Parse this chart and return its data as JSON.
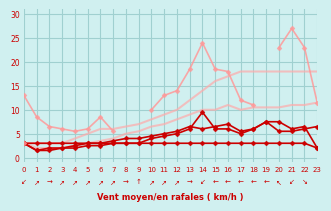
{
  "title": "",
  "xlabel": "Vent moyen/en rafales ( km/h )",
  "ylabel": "",
  "bg_color": "#d0f0f0",
  "grid_color": "#a0d0d0",
  "xlim": [
    0,
    23
  ],
  "ylim": [
    -1,
    31
  ],
  "yticks": [
    0,
    5,
    10,
    15,
    20,
    25,
    30
  ],
  "xticks": [
    0,
    1,
    2,
    3,
    4,
    5,
    6,
    7,
    8,
    9,
    10,
    11,
    12,
    13,
    14,
    15,
    16,
    17,
    18,
    19,
    20,
    21,
    22,
    23
  ],
  "series": [
    {
      "x": [
        0,
        1,
        2,
        3,
        4,
        5,
        6,
        7,
        8,
        9,
        10,
        11,
        12,
        13,
        14,
        15,
        16,
        17,
        18,
        19,
        20,
        21,
        22,
        23
      ],
      "y": [
        3,
        3,
        3,
        3,
        3,
        3,
        3,
        3,
        3,
        3,
        3,
        3,
        3,
        3,
        3,
        3,
        3,
        3,
        3,
        3,
        3,
        3,
        3,
        2
      ],
      "color": "#cc0000",
      "alpha": 1.0,
      "lw": 1.2,
      "marker": "D",
      "ms": 2.5
    },
    {
      "x": [
        0,
        1,
        2,
        3,
        4,
        5,
        6,
        7,
        8,
        9,
        10,
        11,
        12,
        13,
        14,
        15,
        16,
        17,
        18,
        19,
        20,
        21,
        22,
        23
      ],
      "y": [
        3,
        1.5,
        1.5,
        2,
        2,
        2.5,
        2.5,
        3,
        3,
        3,
        4,
        4.5,
        5,
        6,
        9.5,
        6,
        6,
        5,
        6,
        7.5,
        7.5,
        6,
        6.5,
        2
      ],
      "color": "#cc0000",
      "alpha": 1.0,
      "lw": 1.2,
      "marker": "D",
      "ms": 2.5
    },
    {
      "x": [
        0,
        1,
        2,
        3,
        4,
        5,
        6,
        7,
        8,
        9,
        10,
        11,
        12,
        13,
        14,
        15,
        16,
        17,
        18,
        19,
        20,
        21,
        22,
        23
      ],
      "y": [
        3,
        1.5,
        2,
        2,
        2.5,
        3,
        3,
        3.5,
        4,
        4,
        4.5,
        5,
        5.5,
        6.5,
        6,
        6.5,
        7,
        5.5,
        6,
        7.5,
        5.5,
        5.5,
        6,
        6.5
      ],
      "color": "#cc0000",
      "alpha": 1.0,
      "lw": 1.2,
      "marker": "D",
      "ms": 2.5
    },
    {
      "x": [
        0,
        1,
        2,
        3,
        4,
        5,
        6,
        7,
        8,
        9,
        10,
        11,
        12,
        13,
        14,
        15,
        16,
        17,
        18,
        19,
        20,
        21,
        22,
        23
      ],
      "y": [
        13,
        8.5,
        6.5,
        6,
        5.5,
        6,
        8.5,
        5.5,
        null,
        null,
        10,
        13,
        14,
        18.5,
        24,
        18.5,
        18,
        12,
        11,
        null,
        23,
        27,
        23,
        11.5
      ],
      "color": "#ff9999",
      "alpha": 0.85,
      "lw": 1.2,
      "marker": "D",
      "ms": 2.5
    },
    {
      "x": [
        0,
        1,
        2,
        3,
        4,
        5,
        6,
        7,
        8,
        9,
        10,
        11,
        12,
        13,
        14,
        15,
        16,
        17,
        18,
        19,
        20,
        21,
        22,
        23
      ],
      "y": [
        3,
        null,
        null,
        null,
        null,
        null,
        null,
        null,
        null,
        null,
        null,
        null,
        null,
        null,
        null,
        null,
        null,
        null,
        null,
        null,
        null,
        null,
        null,
        null
      ],
      "color": "#ff9999",
      "alpha": 0.85,
      "lw": 1.2,
      "marker": "D",
      "ms": 2.5
    },
    {
      "x": [
        0,
        1,
        2,
        3,
        4,
        5,
        6,
        7,
        8,
        9,
        10,
        11,
        12,
        13,
        14,
        15,
        16,
        17,
        18,
        19,
        20,
        21,
        22,
        23
      ],
      "y": [
        3,
        3,
        3,
        3,
        4,
        5,
        6,
        6,
        6.5,
        7,
        8,
        9,
        10,
        12,
        14,
        16,
        17,
        18,
        18,
        18,
        18,
        18,
        18,
        18
      ],
      "color": "#ffaaaa",
      "alpha": 0.7,
      "lw": 1.5,
      "marker": null,
      "ms": 0
    },
    {
      "x": [
        0,
        1,
        2,
        3,
        4,
        5,
        6,
        7,
        8,
        9,
        10,
        11,
        12,
        13,
        14,
        15,
        16,
        17,
        18,
        19,
        20,
        21,
        22,
        23
      ],
      "y": [
        3,
        2,
        2,
        2,
        2.5,
        3,
        3.5,
        4,
        5,
        5.5,
        6.5,
        7,
        8,
        9,
        10,
        10,
        11,
        10,
        10.5,
        10.5,
        10.5,
        11,
        11,
        11.5
      ],
      "color": "#ffaaaa",
      "alpha": 0.7,
      "lw": 1.5,
      "marker": null,
      "ms": 0
    }
  ],
  "wind_arrows": true
}
